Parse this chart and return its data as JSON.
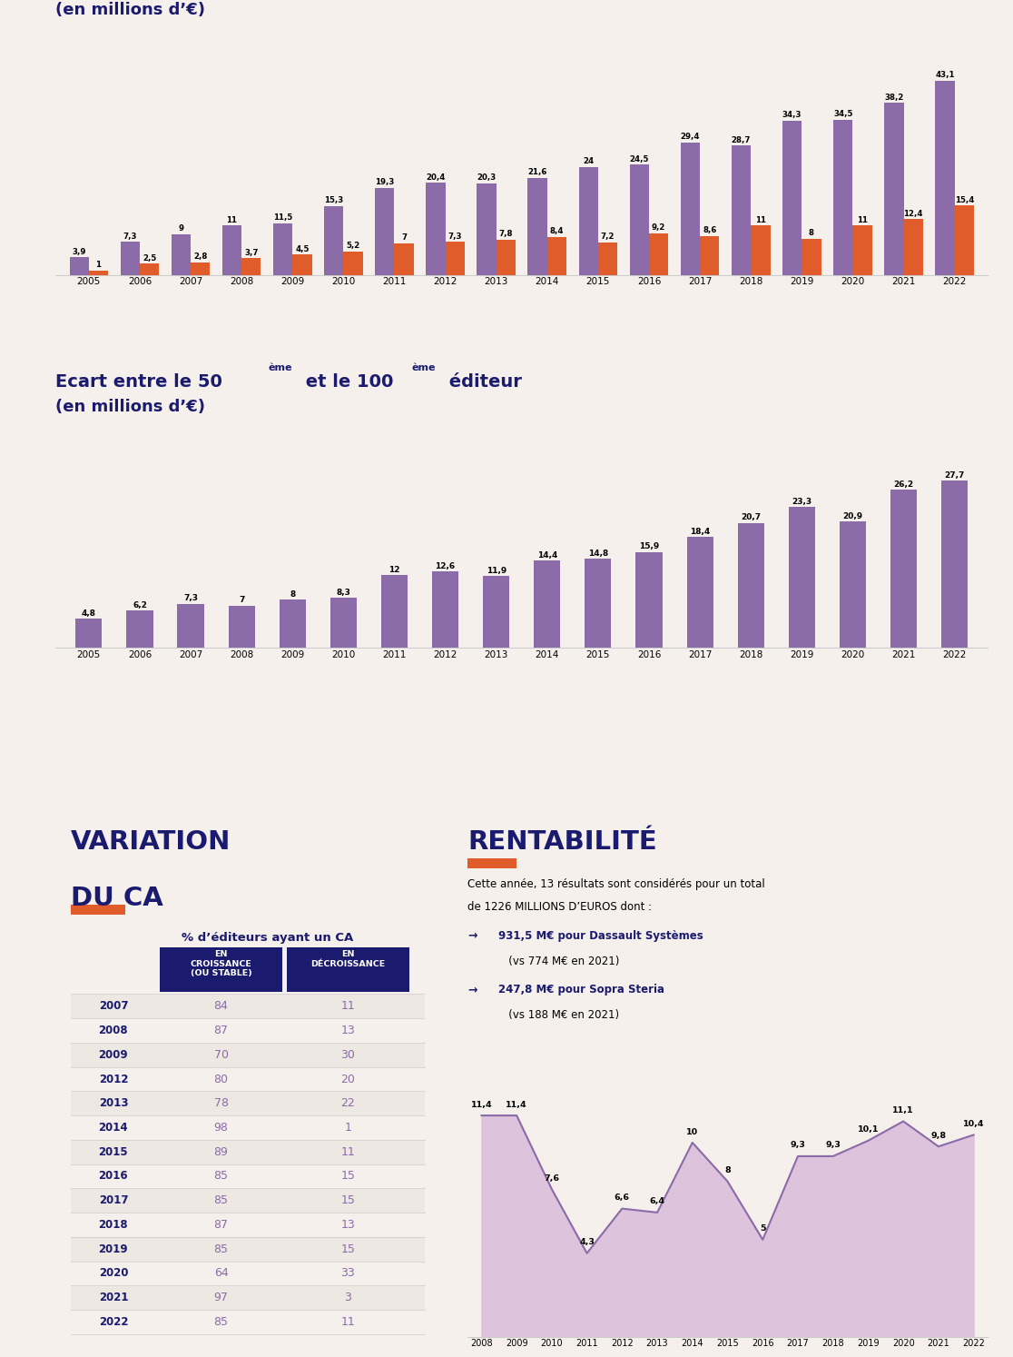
{
  "bg_color": "#f5f0eb",
  "purple": "#8B6BA8",
  "orange": "#E05C2A",
  "dark_blue": "#1a1a6e",
  "chart1_years": [
    2005,
    2006,
    2007,
    2008,
    2009,
    2010,
    2011,
    2012,
    2013,
    2014,
    2015,
    2016,
    2017,
    2018,
    2019,
    2020,
    2021,
    2022
  ],
  "chart1_50": [
    3.9,
    7.3,
    9.0,
    11.0,
    11.5,
    15.3,
    19.3,
    20.4,
    20.3,
    21.6,
    24.0,
    24.5,
    29.4,
    28.7,
    34.3,
    34.5,
    38.2,
    43.1
  ],
  "chart1_100": [
    1.0,
    2.5,
    2.8,
    3.7,
    4.5,
    5.2,
    7.0,
    7.3,
    7.8,
    8.4,
    7.2,
    9.2,
    8.6,
    11.0,
    8.0,
    11.0,
    12.4,
    15.4
  ],
  "chart2_years": [
    2005,
    2006,
    2007,
    2008,
    2009,
    2010,
    2011,
    2012,
    2013,
    2014,
    2015,
    2016,
    2017,
    2018,
    2019,
    2020,
    2021,
    2022
  ],
  "chart2_values": [
    4.8,
    6.2,
    7.3,
    7.0,
    8.0,
    8.3,
    12.0,
    12.6,
    11.9,
    14.4,
    14.8,
    15.9,
    18.4,
    20.7,
    23.3,
    20.9,
    26.2,
    27.7
  ],
  "variation_years": [
    2007,
    2008,
    2009,
    2012,
    2013,
    2014,
    2015,
    2016,
    2017,
    2018,
    2019,
    2020,
    2021,
    2022
  ],
  "variation_growth": [
    84,
    87,
    70,
    80,
    78,
    98,
    89,
    85,
    85,
    87,
    85,
    64,
    97,
    85
  ],
  "variation_decline": [
    11,
    13,
    30,
    20,
    22,
    1,
    11,
    15,
    15,
    13,
    15,
    33,
    3,
    11
  ],
  "profitability_years": [
    2008,
    2009,
    2010,
    2011,
    2012,
    2013,
    2014,
    2015,
    2016,
    2017,
    2018,
    2019,
    2020,
    2021,
    2022
  ],
  "profitability_values": [
    11.4,
    11.4,
    7.6,
    4.3,
    6.6,
    6.4,
    10.0,
    8.0,
    5.0,
    9.3,
    9.3,
    10.1,
    11.1,
    9.8,
    10.4
  ]
}
